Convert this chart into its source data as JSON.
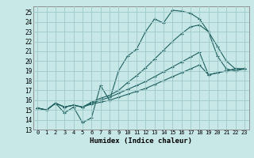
{
  "xlabel": "Humidex (Indice chaleur)",
  "bg_color": "#c8e8e8",
  "grid_color": "#a0c8c8",
  "line_color": "#1e6060",
  "xlim": [
    -0.5,
    23.5
  ],
  "ylim": [
    13,
    25.6
  ],
  "xticks": [
    0,
    1,
    2,
    3,
    4,
    5,
    6,
    7,
    8,
    9,
    10,
    11,
    12,
    13,
    14,
    15,
    16,
    17,
    18,
    19,
    20,
    21,
    22,
    23
  ],
  "yticks": [
    13,
    14,
    15,
    16,
    17,
    18,
    19,
    20,
    21,
    22,
    23,
    24,
    25
  ],
  "series": [
    [
      15.2,
      15.0,
      15.7,
      14.7,
      15.3,
      13.7,
      14.2,
      17.5,
      16.0,
      19.0,
      20.5,
      21.2,
      23.0,
      24.3,
      23.9,
      25.2,
      25.1,
      24.9,
      24.3,
      23.0,
      20.5,
      19.2,
      19.0,
      19.2
    ],
    [
      15.2,
      15.0,
      15.7,
      15.3,
      15.5,
      15.3,
      15.8,
      16.2,
      16.5,
      17.0,
      17.8,
      18.5,
      19.3,
      20.2,
      21.1,
      22.0,
      22.8,
      23.5,
      23.7,
      23.0,
      21.5,
      20.0,
      19.2,
      19.2
    ],
    [
      15.2,
      15.0,
      15.7,
      15.3,
      15.5,
      15.3,
      15.7,
      16.0,
      16.3,
      16.7,
      17.1,
      17.5,
      17.9,
      18.4,
      18.9,
      19.4,
      19.9,
      20.4,
      20.9,
      18.6,
      18.8,
      19.0,
      19.2,
      19.2
    ],
    [
      15.2,
      15.0,
      15.7,
      15.3,
      15.5,
      15.3,
      15.6,
      15.8,
      16.0,
      16.3,
      16.6,
      16.9,
      17.2,
      17.6,
      18.0,
      18.4,
      18.8,
      19.2,
      19.6,
      18.6,
      18.8,
      19.0,
      19.2,
      19.2
    ]
  ]
}
